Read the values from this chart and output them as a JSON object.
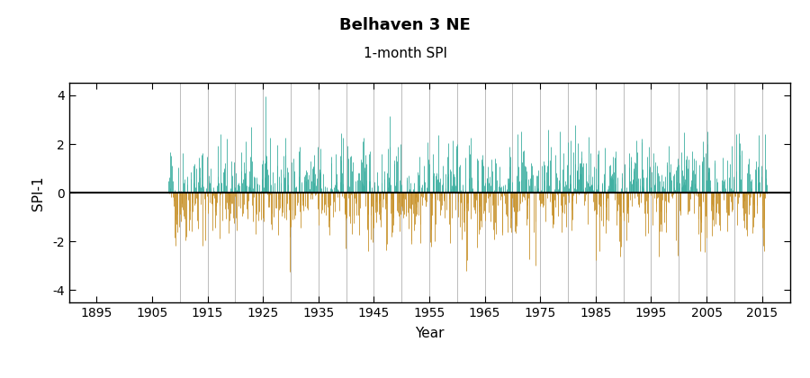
{
  "title": "Belhaven 3 NE",
  "subtitle": "1-month SPI",
  "ylabel": "SPI-1",
  "xlabel": "Year",
  "start_year": 1908,
  "end_year": 2016,
  "x_ticks": [
    1895,
    1905,
    1915,
    1925,
    1935,
    1945,
    1955,
    1965,
    1975,
    1985,
    1995,
    2005,
    2015
  ],
  "vlines_every": 5,
  "xlim_left": 1890,
  "xlim_right": 2020,
  "ylim": [
    -4.5,
    4.5
  ],
  "yticks": [
    -4,
    -2,
    0,
    2,
    4
  ],
  "color_positive": "#3BAEA0",
  "color_negative": "#C8922A",
  "vline_color": "#BBBBBB",
  "hline_color": "#000000",
  "background_color": "#FFFFFF",
  "seed": 42,
  "title_fontsize": 13,
  "subtitle_fontsize": 11,
  "axis_label_fontsize": 11,
  "tick_fontsize": 10,
  "bar_linewidth": 0.6
}
